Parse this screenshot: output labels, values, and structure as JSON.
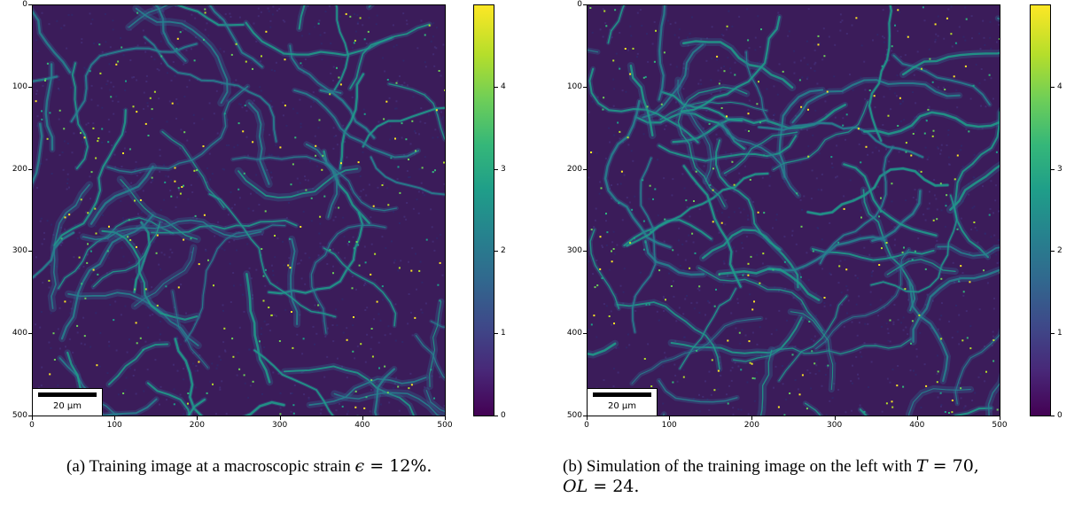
{
  "figures": [
    {
      "id": "a",
      "scalebar_label": "20 µm",
      "caption": {
        "prefix": "(a) Training image at a macroscopic strain ",
        "math_symbol": "ϵ",
        "math_rest": " = 12%.",
        "suffix": ""
      },
      "chart_data": {
        "type": "heatmap",
        "title": "",
        "xlabel": "",
        "ylabel": "",
        "xlim": [
          0,
          500
        ],
        "ylim": [
          500,
          0
        ],
        "x_ticks": [
          "0",
          "100",
          "200",
          "300",
          "400",
          "500"
        ],
        "y_ticks": [
          "0",
          "100",
          "200",
          "300",
          "400",
          "500"
        ],
        "colorbar": {
          "colormap": "viridis",
          "range": [
            0,
            5
          ],
          "ticks": [
            "0",
            "1",
            "2",
            "3",
            "4"
          ]
        }
      }
    },
    {
      "id": "b",
      "scalebar_label": "20 µm",
      "caption": {
        "line1_prefix": "(b) Simulation of the training image on the left with ",
        "line1_math": "T",
        "line1_rest": " = 70,",
        "line2_math": "OL",
        "line2_rest": " = 24."
      },
      "chart_data": {
        "type": "heatmap",
        "title": "",
        "xlabel": "",
        "ylabel": "",
        "xlim": [
          0,
          500
        ],
        "ylim": [
          500,
          0
        ],
        "x_ticks": [
          "0",
          "100",
          "200",
          "300",
          "400",
          "500"
        ],
        "y_ticks": [
          "0",
          "100",
          "200",
          "300",
          "400",
          "500"
        ],
        "colorbar": {
          "colormap": "viridis",
          "range": [
            0,
            5
          ],
          "ticks": [
            "0",
            "1",
            "2",
            "3",
            "4"
          ]
        }
      }
    }
  ]
}
